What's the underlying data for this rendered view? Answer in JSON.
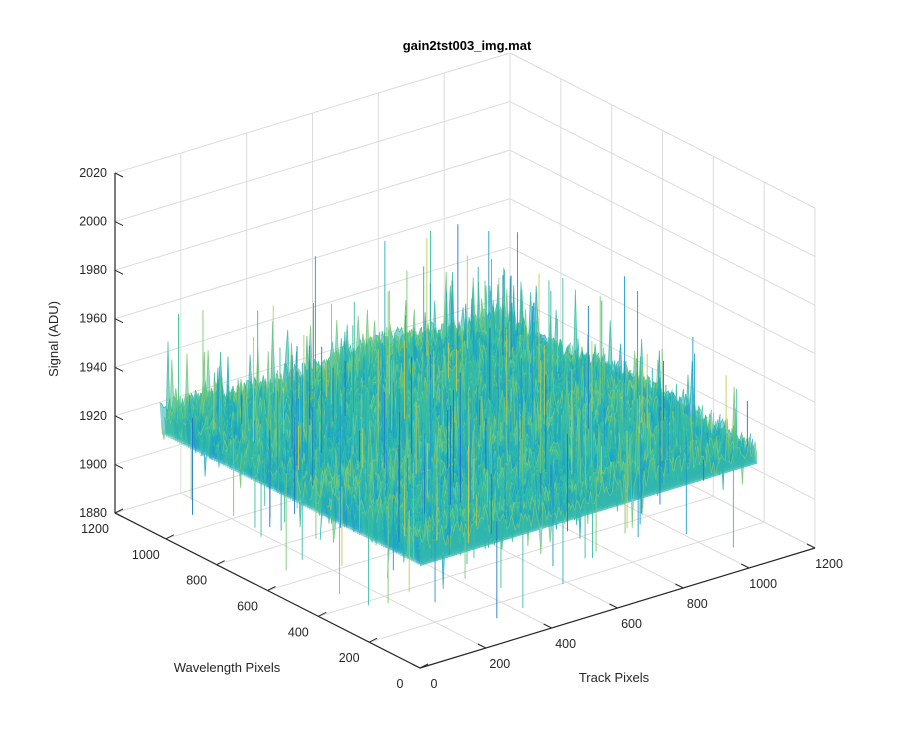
{
  "chart_data": {
    "type": "surface",
    "title": "gain2tst003_img.mat",
    "xlabel": "Track Pixels",
    "ylabel": "Wavelength Pixels",
    "zlabel": "Signal (ADU)",
    "x_ticks": [
      "0",
      "200",
      "400",
      "600",
      "800",
      "1000",
      "1200"
    ],
    "y_ticks": [
      "0",
      "200",
      "400",
      "600",
      "800",
      "1000",
      "1200"
    ],
    "z_ticks": [
      "1880",
      "1900",
      "1920",
      "1940",
      "1960",
      "1980",
      "2000",
      "2020"
    ],
    "xlim": [
      0,
      1200
    ],
    "ylim": [
      0,
      1200
    ],
    "zlim": [
      1880,
      2020
    ],
    "grid": true,
    "surface_mean_signal": 1930,
    "surface_noise_range": [
      1890,
      1985
    ],
    "surface_extent_x": [
      0,
      1024
    ],
    "surface_extent_y": [
      0,
      1024
    ],
    "colormap": [
      "#1f77c8",
      "#1a9bd0",
      "#22b1b8",
      "#3cbfa0",
      "#7cc874",
      "#c7c94a"
    ]
  }
}
